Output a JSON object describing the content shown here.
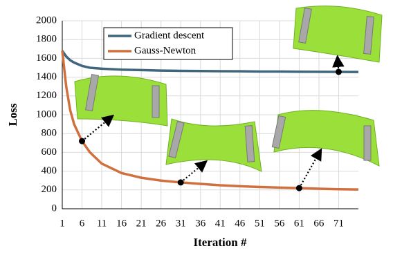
{
  "chart_data": {
    "type": "line",
    "x_label": "Iteration #",
    "y_label": "Loss",
    "x": [
      1,
      2,
      3,
      4,
      6,
      8,
      11,
      16,
      21,
      26,
      31,
      36,
      41,
      46,
      51,
      56,
      61,
      66,
      71,
      76
    ],
    "series": [
      {
        "name": "Gradient descent",
        "color": "#3f667c",
        "values": [
          1680,
          1620,
          1580,
          1555,
          1520,
          1500,
          1490,
          1480,
          1475,
          1470,
          1467,
          1465,
          1463,
          1462,
          1460,
          1460,
          1458,
          1457,
          1456,
          1455
        ]
      },
      {
        "name": "Gauss-Newton",
        "color": "#d0703f",
        "values": [
          1680,
          1300,
          1050,
          900,
          720,
          600,
          480,
          380,
          330,
          300,
          280,
          265,
          250,
          240,
          232,
          225,
          220,
          213,
          208,
          205
        ]
      }
    ],
    "xlim": [
      1,
      76
    ],
    "xticks": [
      1,
      6,
      11,
      16,
      21,
      26,
      31,
      36,
      41,
      46,
      51,
      56,
      61,
      66,
      71
    ],
    "ylim": [
      0,
      2000
    ],
    "yticks": [
      0,
      200,
      400,
      600,
      800,
      1000,
      1200,
      1400,
      1600,
      1800,
      2000
    ],
    "grid": true
  }
}
